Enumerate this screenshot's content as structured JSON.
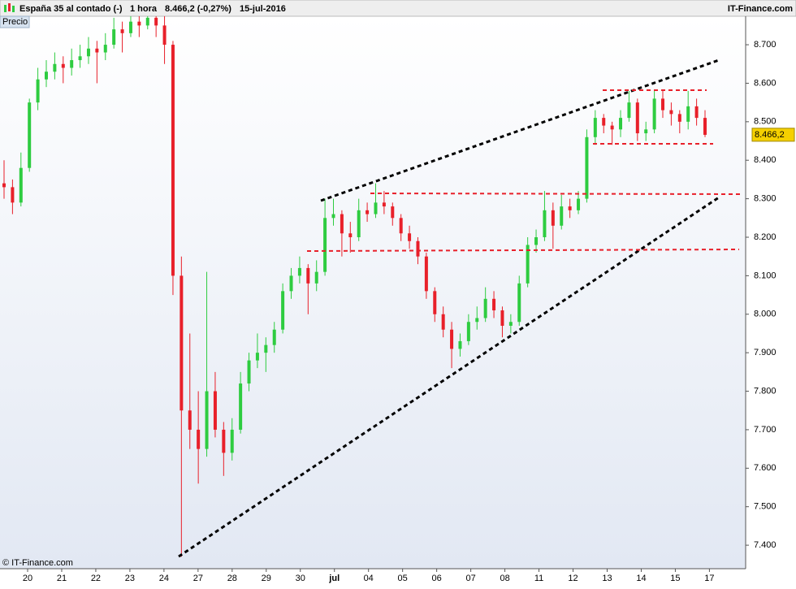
{
  "header": {
    "instrument": "España 35 al contado (-)",
    "timeframe": "1 hora",
    "price": "8.466,2 (-0,27%)",
    "date": "15-jul-2016",
    "brand": "IT-Finance.com"
  },
  "panel_label": "Precio",
  "copyright": "© IT-Finance.com",
  "chart_data": {
    "type": "candlestick",
    "categories": [
      "20",
      "21",
      "22",
      "23",
      "24",
      "27",
      "28",
      "29",
      "30",
      "jul",
      "04",
      "05",
      "06",
      "07",
      "08",
      "11",
      "12",
      "13",
      "14",
      "15",
      "17"
    ],
    "ylim": [
      7339,
      8774
    ],
    "yticks": [
      {
        "value": 7400,
        "label": "7.400"
      },
      {
        "value": 7500,
        "label": "7.500"
      },
      {
        "value": 7600,
        "label": "7.600"
      },
      {
        "value": 7700,
        "label": "7.700"
      },
      {
        "value": 7800,
        "label": "7.800"
      },
      {
        "value": 7900,
        "label": "7.900"
      },
      {
        "value": 8000,
        "label": "8.000"
      },
      {
        "value": 8100,
        "label": "8.100"
      },
      {
        "value": 8200,
        "label": "8.200"
      },
      {
        "value": 8300,
        "label": "8.300"
      },
      {
        "value": 8400,
        "label": "8.400"
      },
      {
        "value": 8500,
        "label": "8.500"
      },
      {
        "value": 8600,
        "label": "8.600"
      },
      {
        "value": 8700,
        "label": "8.700"
      }
    ],
    "last_price": {
      "value": 8466.2,
      "label": "8.466,2"
    },
    "up_color": "#2ecc40",
    "down_color": "#e8202a",
    "candles": [
      [
        8340,
        8400,
        8300,
        8330
      ],
      [
        8330,
        8350,
        8260,
        8290
      ],
      [
        8290,
        8420,
        8280,
        8380
      ],
      [
        8380,
        8560,
        8370,
        8550
      ],
      [
        8550,
        8640,
        8530,
        8610
      ],
      [
        8610,
        8660,
        8590,
        8630
      ],
      [
        8630,
        8680,
        8610,
        8650
      ],
      [
        8650,
        8670,
        8600,
        8640
      ],
      [
        8640,
        8690,
        8620,
        8660
      ],
      [
        8660,
        8700,
        8640,
        8670
      ],
      [
        8670,
        8720,
        8650,
        8690
      ],
      [
        8690,
        8710,
        8600,
        8680
      ],
      [
        8680,
        8730,
        8660,
        8700
      ],
      [
        8700,
        8770,
        8690,
        8740
      ],
      [
        8740,
        8760,
        8680,
        8730
      ],
      [
        8730,
        8790,
        8720,
        8760
      ],
      [
        8760,
        8790,
        8720,
        8750
      ],
      [
        8750,
        8800,
        8740,
        8770
      ],
      [
        8770,
        8790,
        8720,
        8750
      ],
      [
        8750,
        8780,
        8650,
        8700
      ],
      [
        8700,
        8710,
        8050,
        8100
      ],
      [
        8100,
        8150,
        7370,
        7750
      ],
      [
        7750,
        7950,
        7650,
        7700
      ],
      [
        7700,
        7800,
        7560,
        7650
      ],
      [
        7650,
        8110,
        7630,
        7800
      ],
      [
        7800,
        7850,
        7680,
        7700
      ],
      [
        7700,
        7720,
        7580,
        7640
      ],
      [
        7640,
        7730,
        7620,
        7700
      ],
      [
        7700,
        7850,
        7690,
        7820
      ],
      [
        7820,
        7900,
        7800,
        7880
      ],
      [
        7880,
        7950,
        7860,
        7900
      ],
      [
        7900,
        7940,
        7850,
        7920
      ],
      [
        7920,
        7980,
        7900,
        7960
      ],
      [
        7960,
        8080,
        7950,
        8060
      ],
      [
        8060,
        8120,
        8040,
        8100
      ],
      [
        8100,
        8150,
        8080,
        8120
      ],
      [
        8120,
        8130,
        8000,
        8080
      ],
      [
        8080,
        8140,
        8060,
        8110
      ],
      [
        8110,
        8300,
        8100,
        8250
      ],
      [
        8250,
        8300,
        8230,
        8260
      ],
      [
        8260,
        8270,
        8150,
        8210
      ],
      [
        8210,
        8240,
        8160,
        8200
      ],
      [
        8200,
        8300,
        8190,
        8270
      ],
      [
        8270,
        8290,
        8240,
        8260
      ],
      [
        8260,
        8340,
        8250,
        8290
      ],
      [
        8290,
        8320,
        8260,
        8280
      ],
      [
        8280,
        8290,
        8230,
        8250
      ],
      [
        8250,
        8260,
        8190,
        8210
      ],
      [
        8210,
        8230,
        8170,
        8190
      ],
      [
        8190,
        8200,
        8130,
        8150
      ],
      [
        8150,
        8160,
        8040,
        8060
      ],
      [
        8060,
        8070,
        7980,
        8000
      ],
      [
        8000,
        8020,
        7940,
        7960
      ],
      [
        7960,
        7980,
        7860,
        7910
      ],
      [
        7910,
        7950,
        7890,
        7930
      ],
      [
        7930,
        8000,
        7920,
        7980
      ],
      [
        7980,
        8020,
        7960,
        7990
      ],
      [
        7990,
        8070,
        7980,
        8040
      ],
      [
        8040,
        8060,
        7990,
        8010
      ],
      [
        8010,
        8020,
        7940,
        7970
      ],
      [
        7970,
        8000,
        7950,
        7980
      ],
      [
        7980,
        8100,
        7970,
        8080
      ],
      [
        8080,
        8200,
        8070,
        8180
      ],
      [
        8180,
        8220,
        8160,
        8200
      ],
      [
        8200,
        8320,
        8190,
        8270
      ],
      [
        8270,
        8290,
        8170,
        8230
      ],
      [
        8230,
        8310,
        8220,
        8280
      ],
      [
        8280,
        8300,
        8250,
        8270
      ],
      [
        8270,
        8320,
        8260,
        8300
      ],
      [
        8300,
        8480,
        8290,
        8460
      ],
      [
        8460,
        8530,
        8440,
        8510
      ],
      [
        8510,
        8520,
        8470,
        8490
      ],
      [
        8490,
        8500,
        8440,
        8480
      ],
      [
        8480,
        8530,
        8460,
        8510
      ],
      [
        8510,
        8580,
        8500,
        8550
      ],
      [
        8550,
        8560,
        8450,
        8470
      ],
      [
        8470,
        8500,
        8450,
        8480
      ],
      [
        8480,
        8580,
        8470,
        8560
      ],
      [
        8560,
        8580,
        8510,
        8530
      ],
      [
        8530,
        8550,
        8490,
        8520
      ],
      [
        8520,
        8530,
        8470,
        8500
      ],
      [
        8500,
        8580,
        8480,
        8540
      ],
      [
        8540,
        8560,
        8490,
        8510
      ],
      [
        8510,
        8530,
        8460,
        8466
      ]
    ]
  }
}
